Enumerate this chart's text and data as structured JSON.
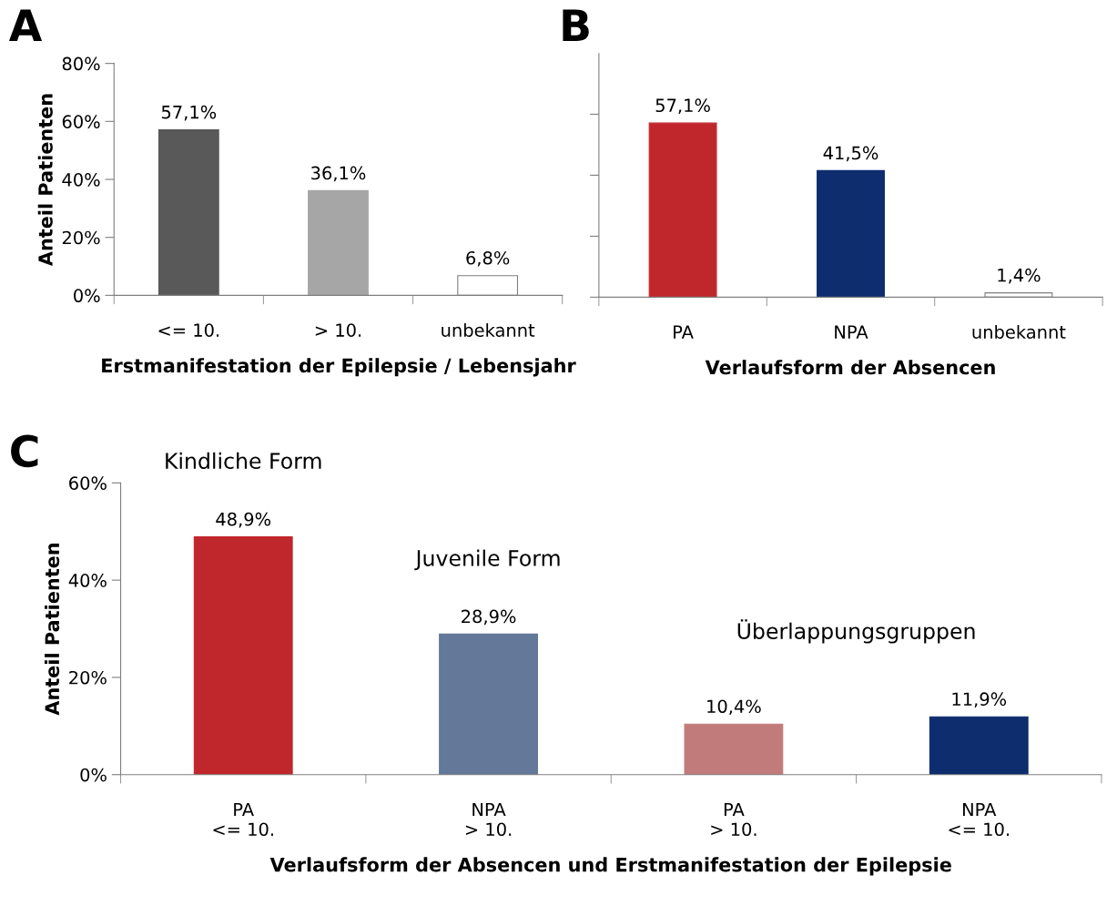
{
  "chart_data": [
    {
      "type": "bar",
      "title": "A",
      "xlabel": "Erstmanifestation der Epilepsie / Lebensjahr",
      "ylabel": "Anteil Patienten",
      "categories": [
        "<= 10.",
        "> 10.",
        "unbekannt"
      ],
      "values": [
        57.1,
        36.1,
        6.8
      ],
      "colors": [
        "#595959",
        "#a6a6a6",
        "#ffffff"
      ],
      "value_labels": [
        "57,1%",
        "36,1%",
        "6,8%"
      ],
      "ylim": [
        0,
        80
      ],
      "yticks": [
        {
          "value": 0,
          "label": "0%"
        },
        {
          "value": 20,
          "label": "20%"
        },
        {
          "value": 40,
          "label": "40%"
        },
        {
          "value": 60,
          "label": "60%"
        },
        {
          "value": 80,
          "label": "80%"
        }
      ],
      "grid": false,
      "legend": false
    },
    {
      "type": "bar",
      "title": "B",
      "xlabel": "Verlaufsform der Absencen",
      "categories": [
        "PA",
        "NPA",
        "unbekannt"
      ],
      "values": [
        57.1,
        41.5,
        1.4
      ],
      "colors": [
        "#c0272d",
        "#0d2d6e",
        "#ffffff"
      ],
      "value_labels": [
        "57,1%",
        "41,5%",
        "1,4%"
      ],
      "tick_labels": "x",
      "grid": false,
      "legend": false
    },
    {
      "type": "bar",
      "title": "C",
      "xlabel": "Verlaufsform der Absencen und Erstmanifestation der Epilepsie",
      "ylabel": "Anteil Patienten",
      "categories": [
        "PA\n<= 10.",
        "NPA\n> 10.",
        "PA\n> 10.",
        "NPA\n<= 10."
      ],
      "values": [
        48.9,
        28.9,
        10.4,
        11.9
      ],
      "colors": [
        "#c0272d",
        "#647899",
        "#c17b7b",
        "#0d2d6e"
      ],
      "value_labels": [
        "48,9%",
        "28,9%",
        "10,4%",
        "11,9%"
      ],
      "ylim": [
        0,
        60
      ],
      "yticks": [
        {
          "value": 0,
          "label": "0%"
        },
        {
          "value": 20,
          "label": "20%"
        },
        {
          "value": 40,
          "label": "40%"
        },
        {
          "value": 60,
          "label": "60%"
        }
      ],
      "annotations": [
        "Kindliche Form",
        "Juvenile Form",
        "Überlappungsgruppen"
      ],
      "grid": false,
      "legend": false
    }
  ]
}
